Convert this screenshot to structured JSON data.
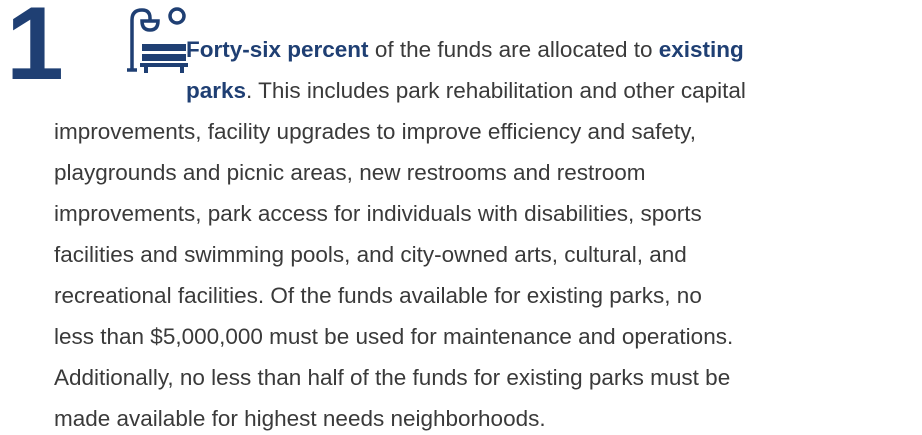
{
  "item": {
    "number": "1",
    "lines": [
      [
        {
          "text": "Forty-six percent",
          "bold": true
        },
        {
          "text": " of the funds are allocated to "
        },
        {
          "text": "existing",
          "bold": true
        }
      ],
      [
        {
          "text": "parks",
          "bold": true
        },
        {
          "text": ". This includes park rehabilitation and other capital"
        }
      ],
      [
        {
          "text": "improvements, facility upgrades to improve efficiency and safety,"
        }
      ],
      [
        {
          "text": "playgrounds and picnic areas, new restrooms and restroom"
        }
      ],
      [
        {
          "text": "improvements, park access for individuals with disabilities, sports"
        }
      ],
      [
        {
          "text": "facilities and swimming pools, and city-owned arts, cultural, and"
        }
      ],
      [
        {
          "text": "recreational facilities. Of the funds available for existing parks, no"
        }
      ],
      [
        {
          "text": "less than $5,000,000 must be used for maintenance and operations."
        }
      ],
      [
        {
          "text": "Additionally, no less than half of the funds for existing parks must be"
        }
      ],
      [
        {
          "text": "made available for highest needs neighborhoods."
        }
      ]
    ]
  }
}
